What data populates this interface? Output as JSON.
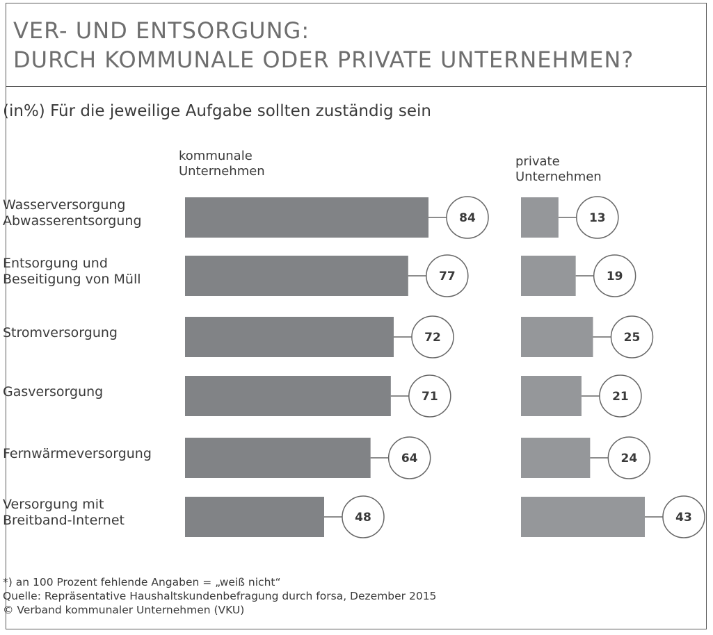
{
  "title_line1": "VER- UND ENTSORGUNG:",
  "title_line2": "DURCH KOMMUNALE ODER PRIVATE UNTERNEHMEN?",
  "subtitle": "(in%) Für die jeweilige Aufgabe sollten zuständig sein",
  "columns": {
    "kommunal": [
      "kommunale",
      "Unternehmen"
    ],
    "privat": [
      "private",
      "Unternehmen"
    ]
  },
  "colors": {
    "bar_kommunal": "#818386",
    "bar_privat": "#95979a",
    "circle_stroke": "#666666",
    "text": "#3a3a3a",
    "title": "#6e6e6e"
  },
  "chart_data": {
    "type": "bar",
    "orientation": "horizontal",
    "title": "VER- UND ENTSORGUNG: DURCH KOMMUNALE ODER PRIVATE UNTERNEHMEN?",
    "subtitle": "(in%) Für die jeweilige Aufgabe sollten zuständig sein",
    "categories": [
      [
        "Wasserversorgung",
        "Abwasserentsorgung"
      ],
      [
        "Entsorgung und",
        "Beseitigung von Müll"
      ],
      [
        "Stromversorgung"
      ],
      [
        "Gasversorgung"
      ],
      [
        "Fernwärmeversorgung"
      ],
      [
        "Versorgung mit",
        "Breitband-Internet"
      ]
    ],
    "series": [
      {
        "name": "kommunale Unternehmen",
        "values": [
          84,
          77,
          72,
          71,
          64,
          48
        ]
      },
      {
        "name": "private Unternehmen",
        "values": [
          13,
          19,
          25,
          21,
          24,
          43
        ]
      }
    ],
    "xlim": [
      0,
      100
    ],
    "grid": false,
    "legend": "column headers above bars"
  },
  "footnote": [
    "*) an 100 Prozent fehlende Angaben = „weiß nicht“",
    "Quelle: Repräsentative Haushaltskundenbefragung durch forsa, Dezember 2015",
    "© Verband kommunaler Unternehmen (VKU)"
  ]
}
